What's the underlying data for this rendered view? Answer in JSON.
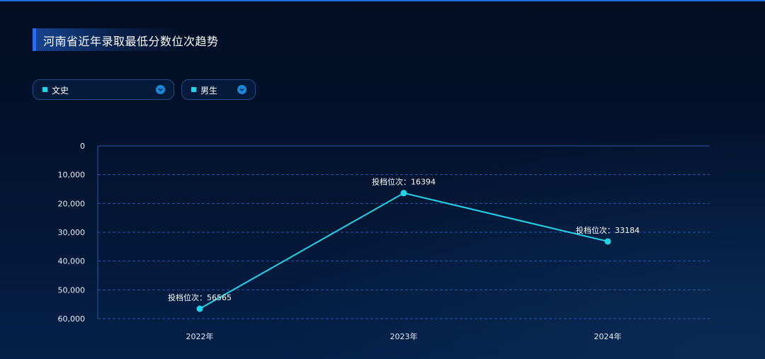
{
  "title": "河南省近年录取最低分数位次趋势",
  "filters": {
    "subject": "文史",
    "gender": "男生"
  },
  "colors": {
    "accent": "#2d6cf0",
    "line": "#21d4e8",
    "grid": "#2a56a8"
  },
  "chart_data": {
    "type": "line",
    "title": "",
    "xlabel": "",
    "ylabel": "",
    "categories": [
      "2022年",
      "2023年",
      "2024年"
    ],
    "series": [
      {
        "values": [
          56565,
          16394,
          33184
        ],
        "point_labels": [
          "投档位次：56565",
          "投档位次：16394",
          "投档位次：33184"
        ]
      }
    ],
    "ylim": [
      0,
      60000
    ],
    "y_inverted": true,
    "y_ticks": [
      0,
      10000,
      20000,
      30000,
      40000,
      50000,
      60000
    ],
    "y_tick_labels": [
      "0",
      "10,000",
      "20,000",
      "30,000",
      "40,000",
      "50,000",
      "60,000"
    ],
    "grid": true,
    "legend": "none"
  }
}
